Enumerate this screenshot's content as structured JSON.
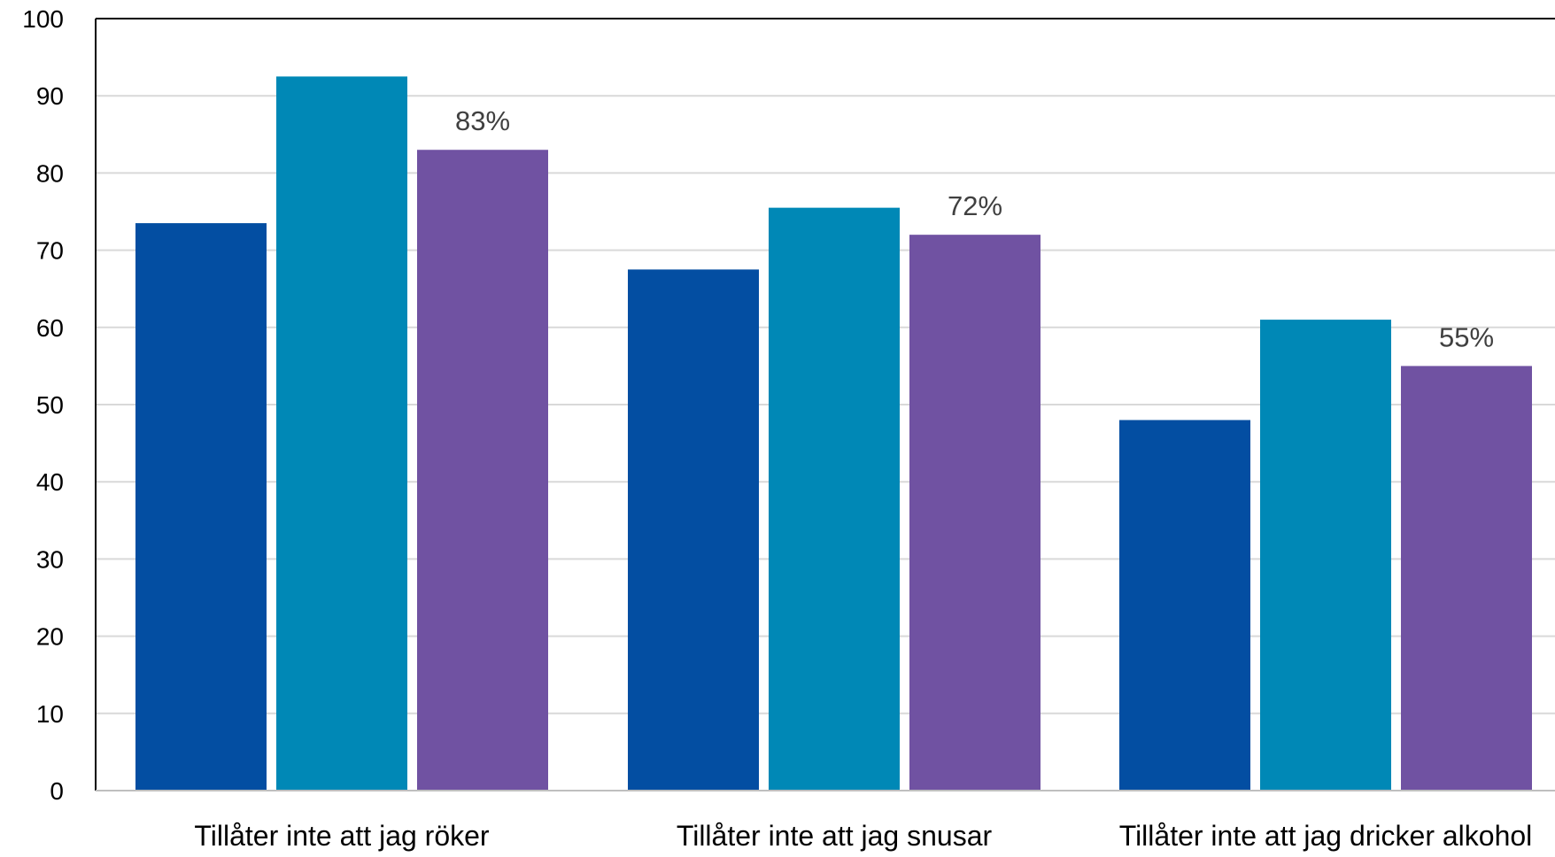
{
  "chart_data": {
    "type": "bar",
    "title": "",
    "xlabel": "",
    "ylabel": "",
    "ylim": [
      0,
      100
    ],
    "yticks": [
      0,
      10,
      20,
      30,
      40,
      50,
      60,
      70,
      80,
      90,
      100
    ],
    "grid": true,
    "categories": [
      "Tillåter inte att jag röker",
      "Tillåter inte att jag snusar",
      "Tillåter inte att jag dricker alkohol"
    ],
    "series": [
      {
        "color": "#034EA2",
        "values": [
          73.5,
          67.5,
          48
        ]
      },
      {
        "color": "#0088B6",
        "values": [
          92.5,
          75.5,
          61
        ]
      },
      {
        "color": "#7052A2",
        "values": [
          83,
          72,
          55
        ],
        "data_labels": [
          "83%",
          "72%",
          "55%"
        ]
      }
    ]
  }
}
